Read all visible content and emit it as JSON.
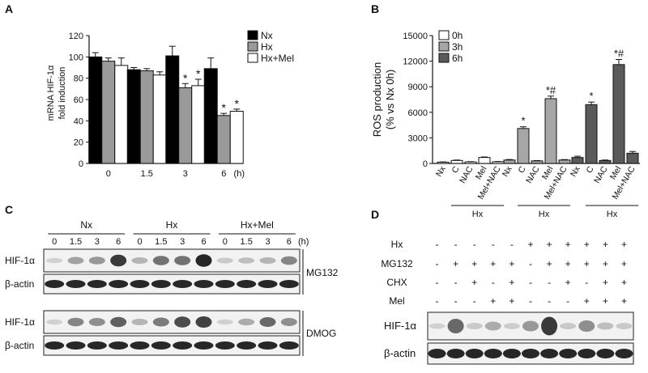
{
  "panels": {
    "A": {
      "label": "A"
    },
    "B": {
      "label": "B"
    },
    "C": {
      "label": "C"
    },
    "D": {
      "label": "D"
    }
  },
  "chart_data": [
    {
      "type": "bar",
      "panel": "A",
      "ylabel": "mRNA HIF-1α fold induction",
      "ylabel_lines": [
        "mRNA HIF-1α",
        "fold induction"
      ],
      "xunit": "(h)",
      "categories": [
        "0",
        "1.5",
        "3",
        "6"
      ],
      "ylim": [
        0,
        120
      ],
      "yticks": [
        0,
        20,
        40,
        60,
        80,
        100,
        120
      ],
      "legend_position": "top-right",
      "series": [
        {
          "name": "Nx",
          "color": "#000000",
          "values": [
            100,
            88,
            101,
            89
          ],
          "errors": [
            4,
            2,
            9,
            10
          ],
          "stars": [
            "",
            "",
            "",
            ""
          ]
        },
        {
          "name": "Hx",
          "color": "#9a9a9a",
          "values": [
            96,
            87,
            71,
            45
          ],
          "errors": [
            3,
            2,
            4,
            2
          ],
          "stars": [
            "",
            "",
            "*",
            "*"
          ]
        },
        {
          "name": "Hx+Mel",
          "color": "#ffffff",
          "values": [
            92,
            83,
            73,
            49
          ],
          "errors": [
            7,
            3,
            6,
            2
          ],
          "stars": [
            "",
            "",
            "*",
            "*"
          ]
        }
      ]
    },
    {
      "type": "bar",
      "panel": "B",
      "ylabel": "ROS production (% vs Nx 0h)",
      "ylabel_lines": [
        "ROS production",
        "(% vs Nx 0h)"
      ],
      "categories": [
        "Nx",
        "C",
        "NAC",
        "Mel",
        "Mel+NAC"
      ],
      "group_label": "Hx",
      "ylim": [
        0,
        15000
      ],
      "yticks": [
        0,
        3000,
        6000,
        9000,
        12000,
        15000
      ],
      "legend_position": "top-right",
      "series": [
        {
          "name": "0h",
          "color": "#ffffff",
          "values": [
            150,
            350,
            180,
            700,
            200
          ],
          "errors": [
            30,
            50,
            30,
            60,
            30
          ],
          "stars": [
            "",
            "",
            "",
            "",
            ""
          ]
        },
        {
          "name": "3h",
          "color": "#a6a6a6",
          "values": [
            400,
            4100,
            300,
            7600,
            400
          ],
          "errors": [
            60,
            200,
            40,
            300,
            50
          ],
          "stars": [
            "",
            "*",
            "",
            "*#",
            ""
          ]
        },
        {
          "name": "6h",
          "color": "#5a5a5a",
          "values": [
            700,
            6900,
            350,
            11600,
            1200
          ],
          "errors": [
            150,
            300,
            50,
            600,
            200
          ],
          "stars": [
            "",
            "*",
            "",
            "*#",
            ""
          ]
        }
      ]
    }
  ],
  "blot_C": {
    "groups": [
      "Nx",
      "Hx",
      "Hx+Mel"
    ],
    "times": [
      "0",
      "1.5",
      "3",
      "6"
    ],
    "unit": "(h)",
    "rows": [
      "HIF-1α",
      "β-actin",
      "HIF-1α",
      "β-actin"
    ],
    "conditions": [
      "MG132",
      "DMOG"
    ],
    "hif_mg132": [
      0.05,
      0.3,
      0.35,
      0.85,
      0.2,
      0.55,
      0.55,
      0.95,
      0.1,
      0.15,
      0.2,
      0.45
    ],
    "hif_dmog": [
      0.05,
      0.45,
      0.4,
      0.65,
      0.2,
      0.5,
      0.75,
      0.8,
      0.05,
      0.25,
      0.6,
      0.4
    ]
  },
  "blot_D": {
    "row_labels": [
      "Hx",
      "MG132",
      "CHX",
      "Mel"
    ],
    "conditions": [
      [
        "-",
        "-",
        "-",
        "-",
        "-",
        "+",
        "+",
        "+",
        "+",
        "+",
        "+"
      ],
      [
        "-",
        "+",
        "+",
        "+",
        "+",
        "-",
        "+",
        "+",
        "+",
        "+",
        "+"
      ],
      [
        "-",
        "-",
        "+",
        "-",
        "+",
        "-",
        "-",
        "+",
        "-",
        "+",
        "+"
      ],
      [
        "-",
        "-",
        "-",
        "+",
        "+",
        "-",
        "-",
        "-",
        "+",
        "+",
        "+"
      ]
    ],
    "blot_rows": [
      "HIF-1α",
      "β-actin"
    ],
    "hif": [
      0.05,
      0.6,
      0.1,
      0.25,
      0.08,
      0.35,
      0.85,
      0.1,
      0.4,
      0.15,
      0.1
    ]
  }
}
